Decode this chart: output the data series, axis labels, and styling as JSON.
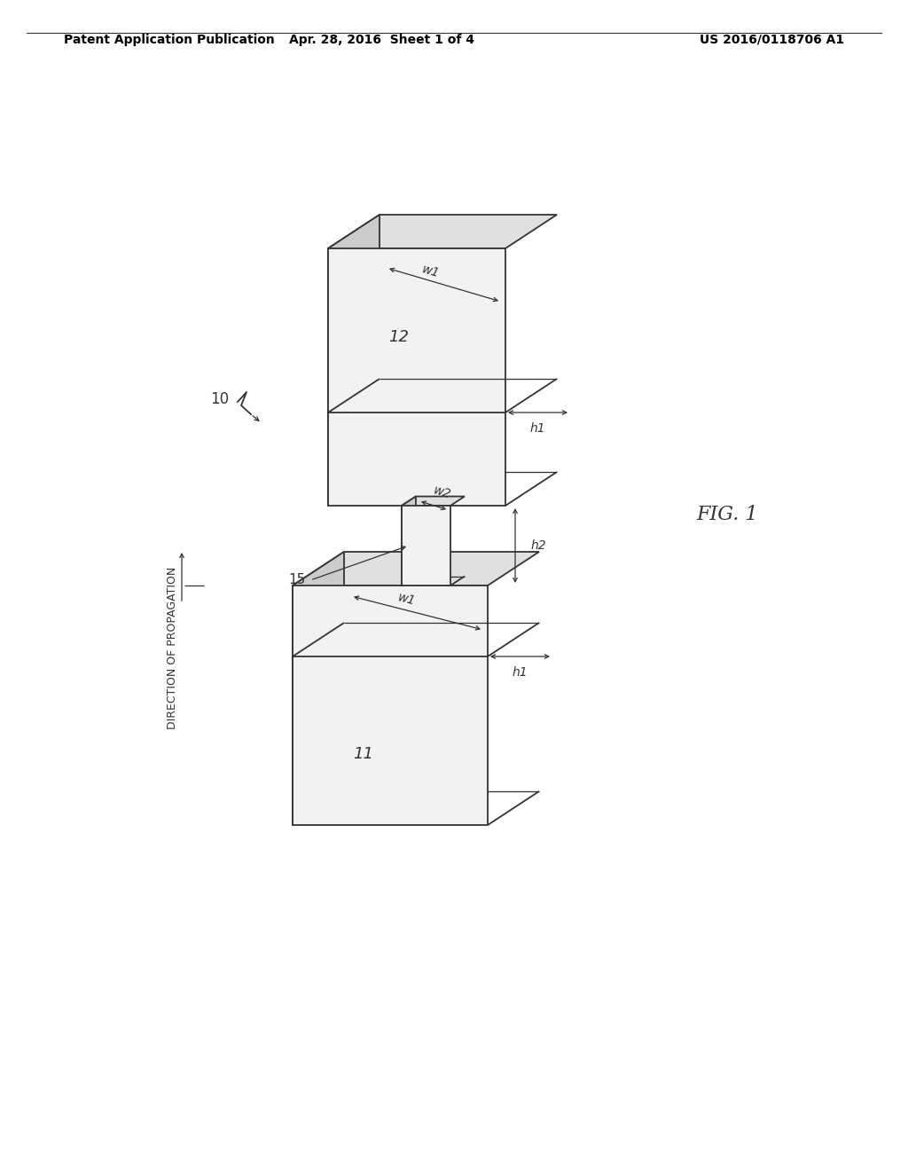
{
  "background_color": "#ffffff",
  "header_left": "Patent Application Publication",
  "header_center": "Apr. 28, 2016  Sheet 1 of 4",
  "header_right": "US 2016/0118706 A1",
  "header_fontsize": 10,
  "fig_label": "FIG. 1",
  "line_color": "#333333",
  "line_width": 1.3,
  "top_face_color": "#e0e0e0",
  "left_face_color": "#cccccc",
  "front_face_color": "#f2f2f2"
}
